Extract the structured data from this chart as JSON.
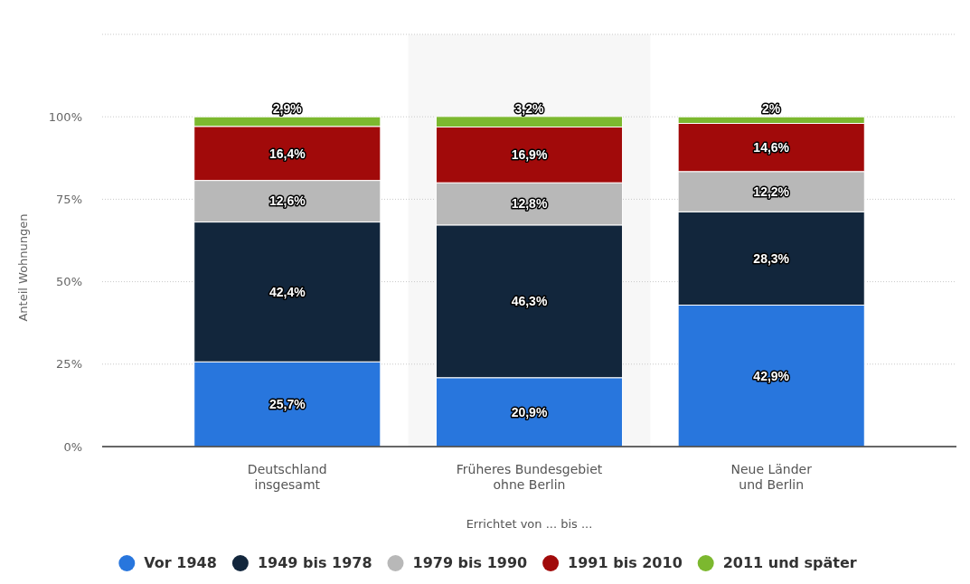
{
  "chart_data": {
    "type": "bar",
    "stacked": true,
    "xlabel": "Errichtet von ... bis ...",
    "ylabel": "Anteil Wohnungen",
    "categories": [
      "Deutschland insgesamt",
      "Früheres Bundesgebiet ohne Berlin",
      "Neue Länder und Berlin"
    ],
    "series": [
      {
        "name": "Vor 1948",
        "color": "#2876dd",
        "values": [
          25.7,
          20.9,
          42.9
        ],
        "value_labels": [
          "25,7%",
          "20,9%",
          "42,9%"
        ]
      },
      {
        "name": "1949 bis 1978",
        "color": "#12263c",
        "values": [
          42.4,
          46.3,
          28.3
        ],
        "value_labels": [
          "42,4%",
          "46,3%",
          "28,3%"
        ]
      },
      {
        "name": "1979 bis 1990",
        "color": "#b8b8b8",
        "values": [
          12.6,
          12.8,
          12.2
        ],
        "value_labels": [
          "12,6%",
          "12,8%",
          "12,2%"
        ]
      },
      {
        "name": "1991 bis 2010",
        "color": "#a10a0a",
        "values": [
          16.4,
          16.9,
          14.6
        ],
        "value_labels": [
          "16,4%",
          "16,9%",
          "14,6%"
        ]
      },
      {
        "name": "2011 und später",
        "color": "#7cb82f",
        "values": [
          2.9,
          3.2,
          2
        ],
        "value_labels": [
          "2,9%",
          "3,2%",
          "2%"
        ]
      }
    ],
    "ylim": [
      0,
      125
    ],
    "yticks": [
      {
        "value": 0,
        "label": "0%"
      },
      {
        "value": 25,
        "label": "25%"
      },
      {
        "value": 50,
        "label": "50%"
      },
      {
        "value": 75,
        "label": "75%"
      },
      {
        "value": 100,
        "label": "100%"
      },
      {
        "value": 125,
        "label": null
      }
    ],
    "bands": [
      {
        "axis": "x",
        "from": "Früheres Bundesgebiet ohne Berlin",
        "to": "Früheres Bundesgebiet ohne Berlin",
        "color": "#f7f7f7"
      }
    ],
    "grid": "y",
    "legend": "bottom"
  }
}
